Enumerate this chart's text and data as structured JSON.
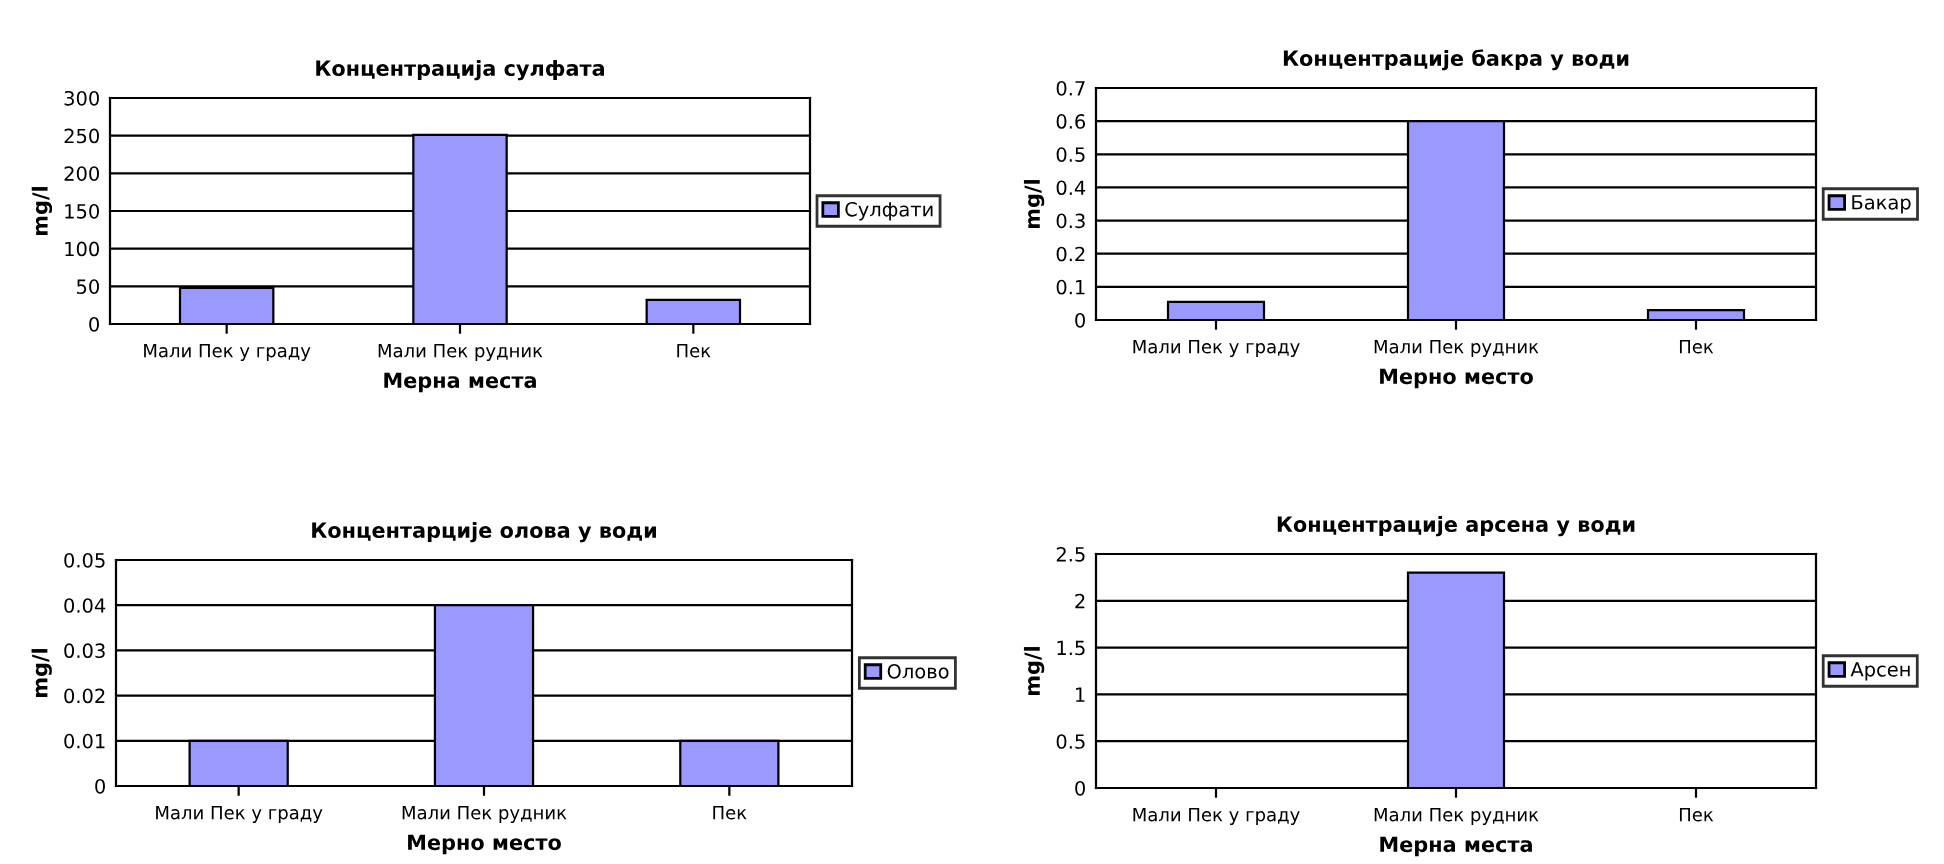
{
  "chart_data": [
    {
      "type": "bar",
      "title": "Концентрација сулфата",
      "xlabel": "Мерна места",
      "ylabel": "mg/l",
      "categories": [
        "Мали Пек у граду",
        "Мали Пек рудник",
        "Пек"
      ],
      "series": [
        {
          "name": "Сулфати",
          "color": "#9999ff",
          "values": [
            48,
            251,
            32
          ]
        }
      ],
      "ylim": [
        0,
        300
      ],
      "yticks": [
        0,
        50,
        100,
        150,
        200,
        250,
        300
      ],
      "grid": "y",
      "legend": "right"
    },
    {
      "type": "bar",
      "title": "Концентрације бакра у води",
      "xlabel": "Мерно место",
      "ylabel": "mg/l",
      "categories": [
        "Мали Пек у граду",
        "Мали Пек рудник",
        "Пек"
      ],
      "series": [
        {
          "name": "Бакар",
          "color": "#9999ff",
          "values": [
            0.055,
            0.6,
            0.03
          ]
        }
      ],
      "ylim": [
        0,
        0.7
      ],
      "yticks": [
        0,
        0.1,
        0.2,
        0.3,
        0.4,
        0.5,
        0.6,
        0.7
      ],
      "grid": "y",
      "legend": "right"
    },
    {
      "type": "bar",
      "title": "Концентарције олова у води",
      "xlabel": "Мерно место",
      "ylabel": "mg/l",
      "categories": [
        "Мали Пек у граду",
        "Мали Пек рудник",
        "Пек"
      ],
      "series": [
        {
          "name": "Олово",
          "color": "#9999ff",
          "values": [
            0.01,
            0.04,
            0.01
          ]
        }
      ],
      "ylim": [
        0,
        0.05
      ],
      "yticks": [
        0,
        0.01,
        0.02,
        0.03,
        0.04,
        0.05
      ],
      "grid": "y",
      "legend": "right"
    },
    {
      "type": "bar",
      "title": "Концентрације арсена у води",
      "xlabel": "Мерна места",
      "ylabel": "mg/l",
      "categories": [
        "Мали Пек у граду",
        "Мали Пек рудник",
        "Пек"
      ],
      "series": [
        {
          "name": "Арсен",
          "color": "#9999ff",
          "values": [
            null,
            2.3,
            null
          ]
        }
      ],
      "ylim": [
        0,
        2.5
      ],
      "yticks": [
        0,
        0.5,
        1,
        1.5,
        2,
        2.5
      ],
      "grid": "y",
      "legend": "right"
    }
  ]
}
